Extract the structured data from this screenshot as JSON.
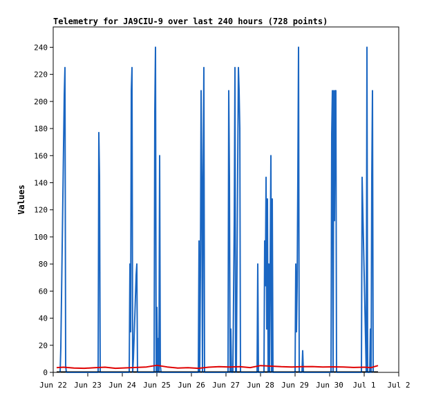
{
  "chart_data": {
    "type": "line",
    "title": "Telemetry for JA9CIU-9 over last 240 hours (728 points)",
    "ylabel": "Values",
    "xlabel": "",
    "ylim": [
      0,
      255
    ],
    "xlim": [
      22.0,
      32.0
    ],
    "y_ticks": [
      0,
      20,
      40,
      60,
      80,
      100,
      120,
      140,
      160,
      180,
      200,
      220,
      240
    ],
    "x_ticks": [
      {
        "label": "Jun 22",
        "x": 22
      },
      {
        "label": "Jun 23",
        "x": 23
      },
      {
        "label": "Jun 24",
        "x": 24
      },
      {
        "label": "Jun 25",
        "x": 25
      },
      {
        "label": "Jun 26",
        "x": 26
      },
      {
        "label": "Jun 27",
        "x": 27
      },
      {
        "label": "Jun 28",
        "x": 28
      },
      {
        "label": "Jun 29",
        "x": 29
      },
      {
        "label": "Jun 30",
        "x": 30
      },
      {
        "label": "Jul 1",
        "x": 31
      },
      {
        "label": "Jul 2",
        "x": 32
      }
    ],
    "grid": false,
    "series": [
      {
        "color": "#1a66c2",
        "x": [
          22.2,
          22.22,
          22.24,
          22.26,
          22.28,
          22.3,
          22.32,
          22.34,
          22.36,
          22.38,
          22.4,
          22.42,
          23.3,
          23.31,
          23.32,
          23.34,
          23.36,
          24.2,
          24.22,
          24.24,
          24.26,
          24.28,
          24.3,
          24.32,
          24.36,
          24.38,
          24.4,
          24.42,
          24.44,
          24.92,
          24.94,
          24.96,
          24.98,
          25.0,
          25.02,
          25.04,
          25.06,
          25.08,
          25.1,
          25.12,
          25.14,
          25.16,
          26.2,
          26.22,
          26.24,
          26.26,
          26.28,
          26.3,
          26.32,
          26.34,
          26.36,
          26.38,
          26.4,
          26.42,
          27.06,
          27.08,
          27.1,
          27.12,
          27.14,
          27.16,
          27.2,
          27.24,
          27.26,
          27.28,
          27.3,
          27.32,
          27.36,
          27.38,
          27.4,
          27.42,
          27.9,
          27.92,
          27.94,
          27.96,
          28.1,
          28.12,
          28.14,
          28.16,
          28.18,
          28.2,
          28.22,
          28.24,
          28.26,
          28.3,
          28.32,
          28.34,
          28.36,
          29.0,
          29.02,
          29.04,
          29.06,
          29.08,
          29.1,
          29.12,
          29.2,
          29.22,
          29.24,
          30.04,
          30.06,
          30.08,
          30.1,
          30.12,
          30.14,
          30.16,
          30.18,
          30.2,
          30.22,
          30.24,
          30.92,
          30.94,
          31.06,
          31.08,
          31.1,
          31.16,
          31.18,
          31.2,
          31.22,
          31.24,
          31.26
        ],
        "y": [
          0,
          18,
          55,
          93,
          130,
          168,
          205,
          225,
          5,
          0,
          0,
          0,
          0,
          80,
          177,
          145,
          0,
          0,
          80,
          30,
          208,
          225,
          0,
          10,
          40,
          56,
          72,
          80,
          0,
          0,
          192,
          240,
          0,
          48,
          0,
          25,
          0,
          160,
          5,
          0,
          0,
          0,
          0,
          97,
          0,
          72,
          208,
          144,
          0,
          144,
          225,
          0,
          0,
          0,
          0,
          208,
          144,
          0,
          32,
          0,
          0,
          112,
          225,
          0,
          0,
          80,
          225,
          208,
          180,
          0,
          0,
          80,
          0,
          0,
          0,
          97,
          64,
          144,
          32,
          128,
          0,
          80,
          0,
          160,
          0,
          128,
          0,
          0,
          80,
          30,
          64,
          144,
          240,
          0,
          0,
          16,
          0,
          0,
          176,
          208,
          0,
          208,
          112,
          208,
          208,
          0,
          0,
          0,
          0,
          144,
          0,
          240,
          0,
          0,
          32,
          0,
          144,
          208,
          0
        ]
      },
      {
        "color": "#e00000",
        "x": [
          22.1,
          22.3,
          22.6,
          22.9,
          23.2,
          23.5,
          23.8,
          24.1,
          24.4,
          24.7,
          25.0,
          25.3,
          25.6,
          25.9,
          26.2,
          26.5,
          26.8,
          27.1,
          27.4,
          27.7,
          28.0,
          28.3,
          28.6,
          28.9,
          29.2,
          29.5,
          29.8,
          30.1,
          30.4,
          30.7,
          31.0,
          31.2,
          31.4
        ],
        "y": [
          3.5,
          3.8,
          3.2,
          3.0,
          3.4,
          3.8,
          3.0,
          3.3,
          3.6,
          4.0,
          5.2,
          4.0,
          3.2,
          3.4,
          3.0,
          3.8,
          4.2,
          4.0,
          4.2,
          3.5,
          5.0,
          4.6,
          4.2,
          4.0,
          4.2,
          4.3,
          4.0,
          4.1,
          4.0,
          3.6,
          3.8,
          3.5,
          5.0
        ]
      },
      {
        "color": "#000000",
        "x": [
          22.1,
          31.4
        ],
        "y": [
          0.5,
          0.5
        ]
      }
    ]
  }
}
